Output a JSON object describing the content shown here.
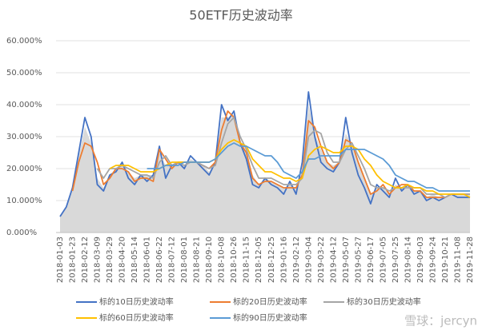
{
  "chart_data": {
    "type": "line",
    "title": "50ETF历史波动率",
    "categories": [
      "2018-01-03",
      null,
      "2018-01-23",
      null,
      "2018-02-12",
      null,
      "2018-03-09",
      null,
      "2018-03-29",
      null,
      "2018-04-20",
      null,
      "2018-05-14",
      null,
      "2018-06-01",
      null,
      "2018-06-22",
      null,
      "2018-07-12",
      null,
      "2018-08-01",
      null,
      "2018-08-21",
      null,
      "2018-09-10",
      null,
      "2018-10-08",
      null,
      "2018-10-26",
      null,
      "2018-11-15",
      null,
      "2018-12-05",
      null,
      "2018-12-25",
      null,
      "2019-01-16",
      null,
      "2019-02-12",
      null,
      "2019-03-04",
      null,
      "2019-03-22",
      null,
      "2019-04-12",
      null,
      "2019-05-07",
      null,
      "2019-05-27",
      null,
      "2019-06-17",
      null,
      "2019-07-05",
      null,
      "2019-07-25",
      null,
      "2019-08-14",
      null,
      "2019-09-03",
      null,
      "2019-09-24",
      null,
      "2019-10-21",
      null,
      "2019-11-08",
      null,
      "2019-11-28"
    ],
    "area": {
      "color": "#d9d9d9",
      "values": [
        5,
        8,
        14,
        24,
        33,
        28,
        17,
        14,
        18,
        20,
        22,
        19,
        17,
        18,
        18,
        18,
        25,
        21,
        21,
        22,
        21,
        23,
        22,
        21,
        19,
        22,
        36,
        36,
        37,
        29,
        25,
        18,
        15,
        17,
        16,
        15,
        14,
        15,
        14,
        20,
        40,
        31,
        26,
        22,
        21,
        22,
        31,
        27,
        22,
        17,
        12,
        14,
        14,
        12,
        15,
        14,
        15,
        13,
        13,
        11,
        12,
        11,
        11,
        12,
        12,
        12,
        12
      ]
    },
    "series": [
      {
        "name": "标的10日历史波动率",
        "color": "#4472c4",
        "values": [
          5,
          8,
          14,
          25,
          36,
          30,
          15,
          13,
          18,
          19,
          22,
          17,
          15,
          18,
          16,
          18,
          27,
          17,
          21,
          22,
          20,
          24,
          22,
          20,
          18,
          22,
          40,
          35,
          38,
          28,
          23,
          15,
          14,
          17,
          15,
          14,
          12,
          16,
          12,
          22,
          44,
          30,
          22,
          20,
          19,
          22,
          36,
          25,
          18,
          14,
          9,
          15,
          13,
          11,
          17,
          13,
          15,
          12,
          13,
          10,
          11,
          10,
          11,
          12,
          11,
          11,
          11
        ]
      },
      {
        "name": "标的20日历史波动率",
        "color": "#ed7d31",
        "values": [
          null,
          null,
          13,
          22,
          28,
          27,
          22,
          15,
          17,
          20,
          20,
          19,
          16,
          17,
          17,
          16,
          26,
          23,
          20,
          22,
          22,
          22,
          22,
          21,
          20,
          22,
          32,
          38,
          36,
          28,
          25,
          17,
          15,
          16,
          16,
          15,
          14,
          14,
          14,
          18,
          35,
          33,
          27,
          22,
          20,
          22,
          29,
          28,
          22,
          17,
          12,
          13,
          15,
          12,
          14,
          15,
          15,
          13,
          13,
          11,
          11,
          11,
          11,
          12,
          12,
          12,
          12
        ]
      },
      {
        "name": "标的30日历史波动率",
        "color": "#a5a5a5",
        "values": [
          null,
          null,
          null,
          null,
          null,
          null,
          20,
          17,
          20,
          20,
          21,
          20,
          19,
          18,
          18,
          17,
          22,
          24,
          21,
          22,
          21,
          22,
          22,
          21,
          20,
          21,
          28,
          34,
          36,
          30,
          26,
          21,
          17,
          17,
          17,
          16,
          15,
          15,
          15,
          17,
          30,
          32,
          31,
          25,
          22,
          22,
          26,
          28,
          24,
          20,
          15,
          14,
          14,
          13,
          14,
          14,
          14,
          14,
          14,
          12,
          12,
          12,
          11,
          12,
          12,
          12,
          12
        ]
      },
      {
        "name": "标的60日历史波动率",
        "color": "#ffc000",
        "values": [
          null,
          null,
          null,
          null,
          null,
          null,
          null,
          null,
          20,
          21,
          21,
          21,
          20,
          19,
          19,
          19,
          20,
          21,
          22,
          22,
          22,
          22,
          22,
          22,
          22,
          23,
          26,
          28,
          29,
          28,
          27,
          23,
          21,
          19,
          19,
          18,
          17,
          17,
          16,
          17,
          24,
          26,
          27,
          26,
          25,
          25,
          27,
          27,
          26,
          23,
          21,
          18,
          16,
          15,
          14,
          14,
          15,
          14,
          14,
          13,
          13,
          12,
          12,
          12,
          12,
          12,
          11
        ]
      },
      {
        "name": "标的90日历史波动率",
        "color": "#5b9bd5",
        "values": [
          null,
          null,
          null,
          null,
          null,
          null,
          null,
          null,
          null,
          null,
          null,
          null,
          null,
          null,
          20,
          20,
          20,
          21,
          21,
          21,
          22,
          22,
          22,
          22,
          22,
          23,
          25,
          27,
          28,
          27,
          27,
          26,
          25,
          24,
          24,
          22,
          19,
          18,
          17,
          19,
          23,
          23,
          24,
          24,
          24,
          24,
          26,
          26,
          26,
          26,
          25,
          24,
          23,
          21,
          18,
          17,
          16,
          16,
          15,
          14,
          14,
          13,
          13,
          13,
          13,
          13,
          13
        ]
      }
    ],
    "ylim": [
      0,
      60
    ],
    "yticks": [
      {
        "value": 0,
        "label": "0.000%"
      },
      {
        "value": 10,
        "label": "10.000%"
      },
      {
        "value": 20,
        "label": "20.000%"
      },
      {
        "value": 30,
        "label": "30.000%"
      },
      {
        "value": 40,
        "label": "40.000%"
      },
      {
        "value": 50,
        "label": "50.000%"
      },
      {
        "value": 60,
        "label": "60.000%"
      }
    ],
    "grid": true,
    "watermark": "雪球：jercyn"
  }
}
